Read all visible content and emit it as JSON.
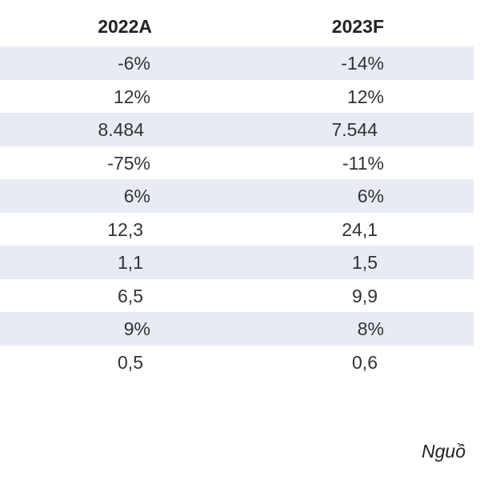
{
  "table": {
    "headers": [
      "2022A",
      "2023F"
    ],
    "rows": [
      {
        "col1": "-6%",
        "col2": "-14%",
        "shaded": true,
        "kind": "pct"
      },
      {
        "col1": "12%",
        "col2": "12%",
        "shaded": false,
        "kind": "pct"
      },
      {
        "col1": "8.484",
        "col2": "7.544",
        "shaded": true,
        "kind": "big"
      },
      {
        "col1": "-75%",
        "col2": "-11%",
        "shaded": false,
        "kind": "pct"
      },
      {
        "col1": "6%",
        "col2": "6%",
        "shaded": true,
        "kind": "pct"
      },
      {
        "col1": "12,3",
        "col2": "24,1",
        "shaded": false,
        "kind": "num"
      },
      {
        "col1": "1,1",
        "col2": "1,5",
        "shaded": true,
        "kind": "num"
      },
      {
        "col1": "6,5",
        "col2": "9,9",
        "shaded": false,
        "kind": "num"
      },
      {
        "col1": "9%",
        "col2": "8%",
        "shaded": true,
        "kind": "pct"
      },
      {
        "col1": "0,5",
        "col2": "0,6",
        "shaded": false,
        "kind": "num"
      }
    ]
  },
  "footer": {
    "source_text": "Nguồ"
  },
  "colors": {
    "shaded_row": "#e8ebf3",
    "text": "#333333"
  }
}
